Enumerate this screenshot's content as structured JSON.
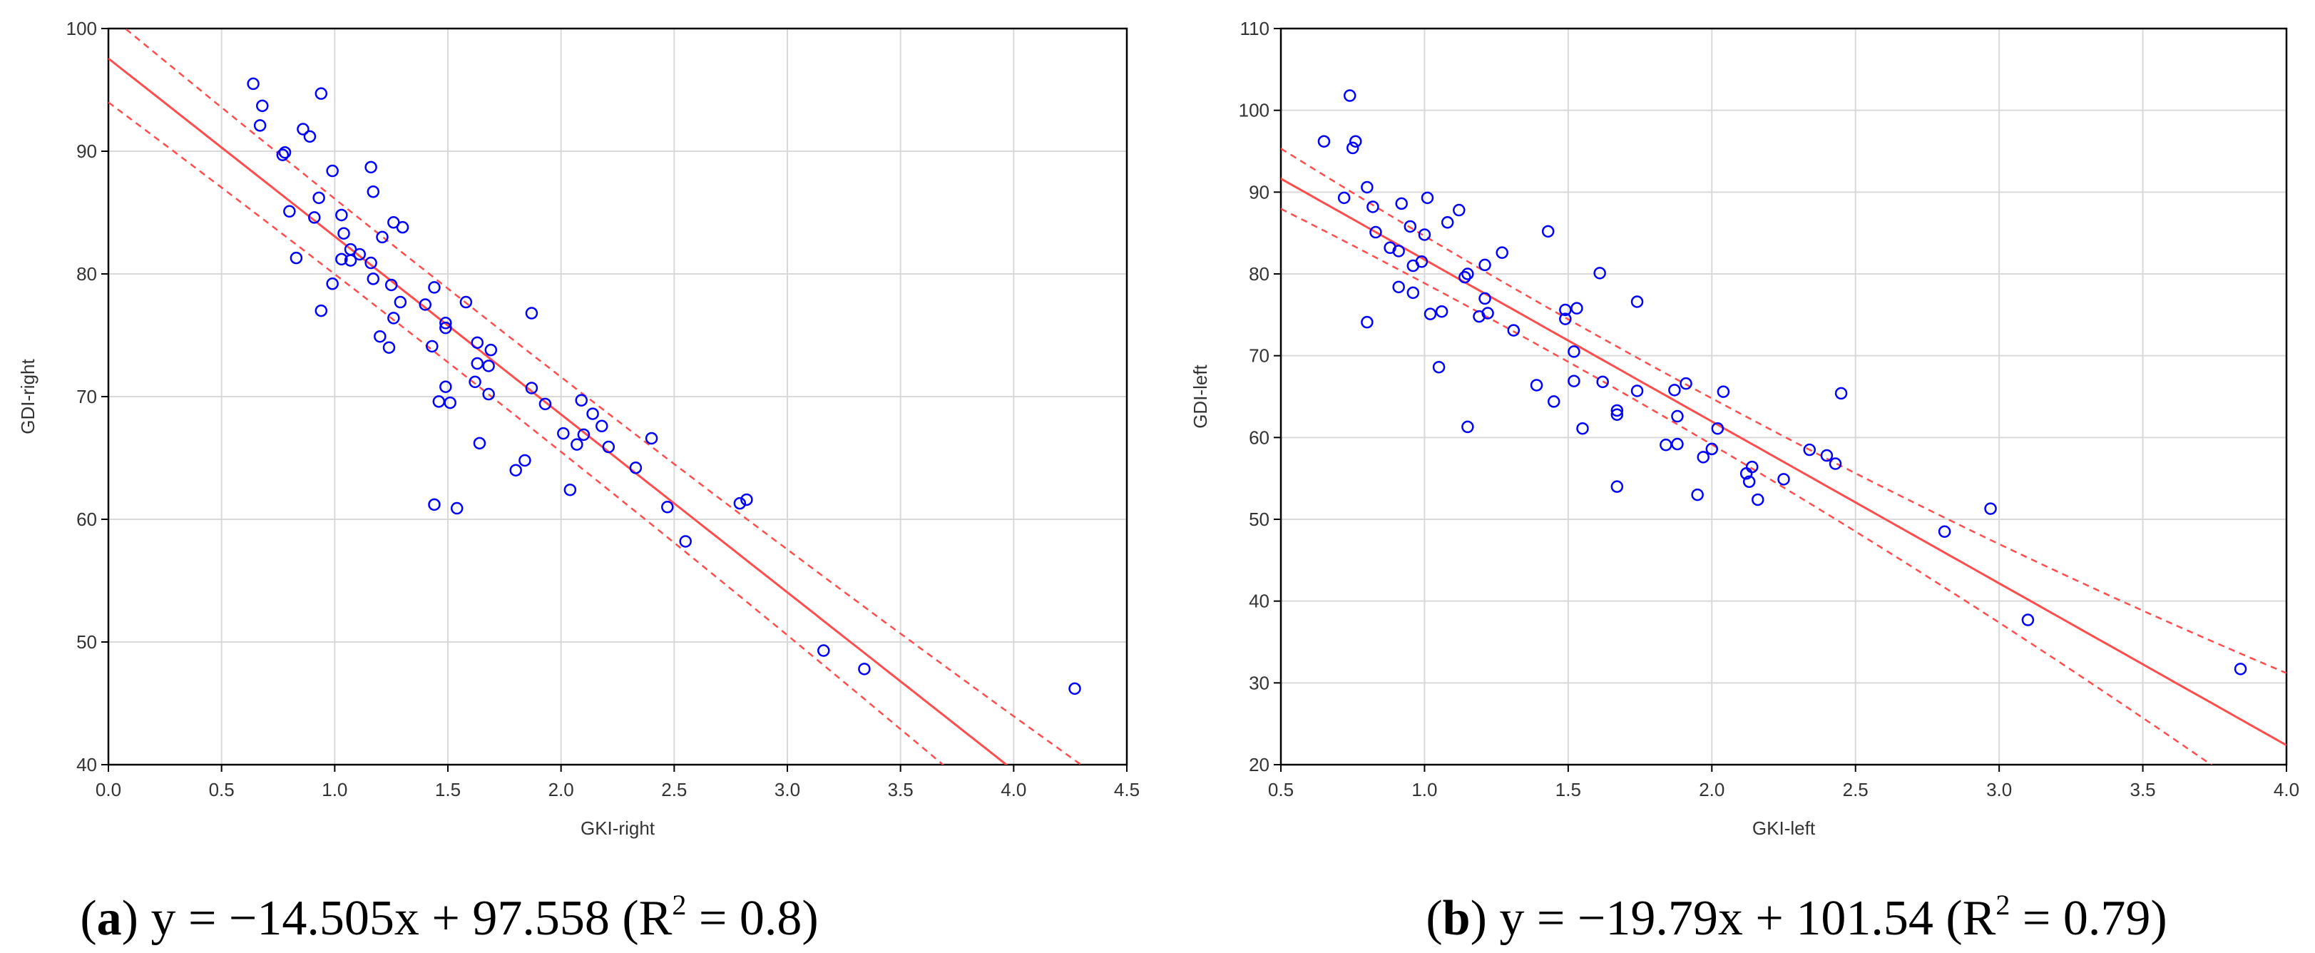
{
  "chart_data": [
    {
      "type": "scatter",
      "panel_letter": "a",
      "caption": {
        "open": "(",
        "letter": "a",
        "close": ") ",
        "equation": "y = −14.505x + 97.558 (R",
        "sup": "2",
        "r2_tail": " = 0.8)"
      },
      "xlabel": "GKI-right",
      "ylabel": "GDI-right",
      "xlim": [
        0.0,
        4.5
      ],
      "ylim": [
        40,
        100
      ],
      "xticks": [
        0.0,
        0.5,
        1.0,
        1.5,
        2.0,
        2.5,
        3.0,
        3.5,
        4.0,
        4.5
      ],
      "xtick_labels": [
        "0.0",
        "0.5",
        "1.0",
        "1.5",
        "2.0",
        "2.5",
        "3.0",
        "3.5",
        "4.0",
        "4.5"
      ],
      "yticks": [
        40,
        50,
        60,
        70,
        80,
        90,
        100
      ],
      "ytick_labels": [
        "40",
        "50",
        "60",
        "70",
        "80",
        "90",
        "100"
      ],
      "grid": true,
      "regression": {
        "slope": -14.505,
        "intercept": 97.558,
        "ci_offset": 3.0,
        "ci_spread": 0.4
      },
      "colors": {
        "points": "#0000ff",
        "fit": "#ff4d4d",
        "grid": "#d9d9d9",
        "axis": "#000000"
      },
      "points": [
        [
          0.64,
          95.5
        ],
        [
          0.68,
          93.7
        ],
        [
          0.67,
          92.1
        ],
        [
          0.77,
          89.7
        ],
        [
          0.78,
          89.9
        ],
        [
          0.86,
          91.8
        ],
        [
          0.89,
          91.2
        ],
        [
          0.94,
          94.7
        ],
        [
          0.8,
          85.1
        ],
        [
          0.83,
          81.3
        ],
        [
          0.91,
          84.6
        ],
        [
          0.93,
          86.2
        ],
        [
          0.99,
          88.4
        ],
        [
          0.94,
          77.0
        ],
        [
          0.99,
          79.2
        ],
        [
          1.03,
          84.8
        ],
        [
          1.03,
          81.2
        ],
        [
          1.04,
          83.3
        ],
        [
          1.07,
          81.1
        ],
        [
          1.07,
          82.0
        ],
        [
          1.11,
          81.6
        ],
        [
          1.16,
          80.9
        ],
        [
          1.17,
          79.6
        ],
        [
          1.16,
          88.7
        ],
        [
          1.17,
          86.7
        ],
        [
          1.21,
          83.0
        ],
        [
          1.26,
          84.2
        ],
        [
          1.3,
          83.8
        ],
        [
          1.25,
          79.1
        ],
        [
          1.29,
          77.7
        ],
        [
          1.26,
          76.4
        ],
        [
          1.2,
          74.9
        ],
        [
          1.24,
          74.0
        ],
        [
          1.4,
          77.5
        ],
        [
          1.44,
          78.9
        ],
        [
          1.43,
          74.1
        ],
        [
          1.49,
          76.0
        ],
        [
          1.49,
          75.6
        ],
        [
          1.58,
          77.7
        ],
        [
          1.63,
          74.4
        ],
        [
          1.63,
          72.7
        ],
        [
          1.68,
          72.5
        ],
        [
          1.69,
          73.8
        ],
        [
          1.62,
          71.2
        ],
        [
          1.68,
          70.2
        ],
        [
          1.46,
          69.6
        ],
        [
          1.49,
          70.8
        ],
        [
          1.51,
          69.5
        ],
        [
          1.64,
          66.2
        ],
        [
          1.44,
          61.2
        ],
        [
          1.54,
          60.9
        ],
        [
          1.8,
          64.0
        ],
        [
          1.84,
          64.8
        ],
        [
          1.87,
          76.8
        ],
        [
          1.87,
          70.7
        ],
        [
          1.93,
          69.4
        ],
        [
          2.01,
          67.0
        ],
        [
          2.09,
          69.7
        ],
        [
          2.14,
          68.6
        ],
        [
          2.18,
          67.6
        ],
        [
          2.21,
          65.9
        ],
        [
          2.07,
          66.1
        ],
        [
          2.1,
          66.9
        ],
        [
          2.04,
          62.4
        ],
        [
          2.33,
          64.2
        ],
        [
          2.4,
          66.6
        ],
        [
          2.47,
          61.0
        ],
        [
          2.55,
          58.2
        ],
        [
          2.79,
          61.3
        ],
        [
          2.82,
          61.6
        ],
        [
          3.16,
          49.3
        ],
        [
          3.34,
          47.8
        ],
        [
          4.27,
          46.2
        ]
      ]
    },
    {
      "type": "scatter",
      "panel_letter": "b",
      "caption": {
        "open": "(",
        "letter": "b",
        "close": ") ",
        "equation": "y = −19.79x + 101.54 (R",
        "sup": "2",
        "r2_tail": " = 0.79)"
      },
      "xlabel": "GKI-left",
      "ylabel": "GDI-left",
      "xlim": [
        0.5,
        4.0
      ],
      "ylim": [
        20,
        110
      ],
      "xticks": [
        0.5,
        1.0,
        1.5,
        2.0,
        2.5,
        3.0,
        3.5,
        4.0
      ],
      "xtick_labels": [
        "0.5",
        "1.0",
        "1.5",
        "2.0",
        "2.5",
        "3.0",
        "3.5",
        "4.0"
      ],
      "yticks": [
        20,
        30,
        40,
        50,
        60,
        70,
        80,
        90,
        100,
        110
      ],
      "ytick_labels": [
        "20",
        "30",
        "40",
        "50",
        "60",
        "70",
        "80",
        "90",
        "100",
        "110"
      ],
      "grid": true,
      "regression": {
        "slope": -19.79,
        "intercept": 101.54,
        "ci_offset": 2.6,
        "ci_spread": 1.2
      },
      "colors": {
        "points": "#0000ff",
        "fit": "#ff4d4d",
        "grid": "#d9d9d9",
        "axis": "#000000"
      },
      "points": [
        [
          0.65,
          96.2
        ],
        [
          0.74,
          101.8
        ],
        [
          0.75,
          95.4
        ],
        [
          0.76,
          96.2
        ],
        [
          0.72,
          89.3
        ],
        [
          0.8,
          90.6
        ],
        [
          0.82,
          88.2
        ],
        [
          0.92,
          88.6
        ],
        [
          1.01,
          89.3
        ],
        [
          1.12,
          87.8
        ],
        [
          0.83,
          85.1
        ],
        [
          0.88,
          83.2
        ],
        [
          0.91,
          82.8
        ],
        [
          0.95,
          85.8
        ],
        [
          0.96,
          81.0
        ],
        [
          0.99,
          81.5
        ],
        [
          1.0,
          84.8
        ],
        [
          1.08,
          86.3
        ],
        [
          0.8,
          74.1
        ],
        [
          0.91,
          78.4
        ],
        [
          0.96,
          77.7
        ],
        [
          1.02,
          75.1
        ],
        [
          1.06,
          75.4
        ],
        [
          1.14,
          79.6
        ],
        [
          1.15,
          80.0
        ],
        [
          1.19,
          74.8
        ],
        [
          1.21,
          77.0
        ],
        [
          1.21,
          81.1
        ],
        [
          1.22,
          75.2
        ],
        [
          1.27,
          82.6
        ],
        [
          1.31,
          73.1
        ],
        [
          1.05,
          68.6
        ],
        [
          1.15,
          61.3
        ],
        [
          1.43,
          85.2
        ],
        [
          1.49,
          75.6
        ],
        [
          1.49,
          74.5
        ],
        [
          1.53,
          75.8
        ],
        [
          1.52,
          70.5
        ],
        [
          1.61,
          80.1
        ],
        [
          1.74,
          76.6
        ],
        [
          1.39,
          66.4
        ],
        [
          1.45,
          64.4
        ],
        [
          1.52,
          66.9
        ],
        [
          1.55,
          61.1
        ],
        [
          1.62,
          66.8
        ],
        [
          1.67,
          63.3
        ],
        [
          1.67,
          62.8
        ],
        [
          1.67,
          54.0
        ],
        [
          1.74,
          65.7
        ],
        [
          1.84,
          59.1
        ],
        [
          1.87,
          65.8
        ],
        [
          1.88,
          62.6
        ],
        [
          1.88,
          59.2
        ],
        [
          1.91,
          66.6
        ],
        [
          1.95,
          53.0
        ],
        [
          1.97,
          57.6
        ],
        [
          2.0,
          58.6
        ],
        [
          2.02,
          61.1
        ],
        [
          2.04,
          65.6
        ],
        [
          2.12,
          55.6
        ],
        [
          2.13,
          54.6
        ],
        [
          2.14,
          56.4
        ],
        [
          2.16,
          52.4
        ],
        [
          2.25,
          54.9
        ],
        [
          2.34,
          58.5
        ],
        [
          2.4,
          57.8
        ],
        [
          2.43,
          56.8
        ],
        [
          2.45,
          65.4
        ],
        [
          2.81,
          48.5
        ],
        [
          2.97,
          51.3
        ],
        [
          3.1,
          37.7
        ],
        [
          3.84,
          31.7
        ]
      ]
    }
  ]
}
